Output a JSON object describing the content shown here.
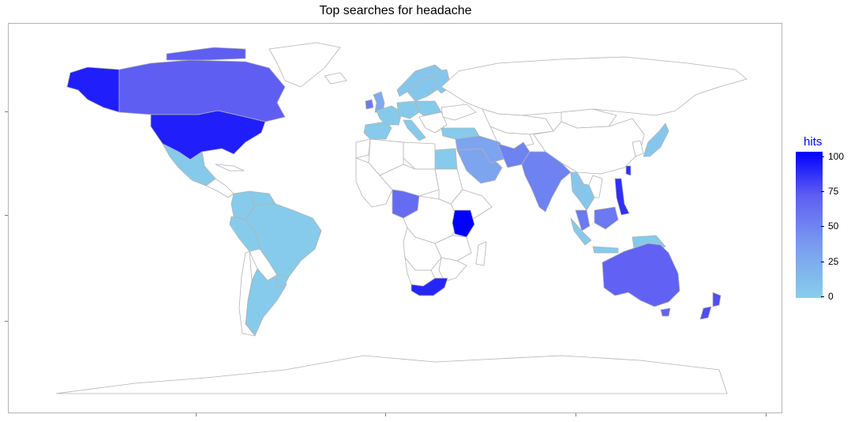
{
  "title": "Top searches for headache",
  "legend": {
    "title": "hits",
    "labels": [
      "100",
      "75",
      "50",
      "25",
      "0"
    ],
    "scale_low_color": "#87ceeb",
    "scale_high_color": "#0000ff"
  },
  "colors": {
    "land_unhighlighted": "#ffffff",
    "border": "#b3b3b3"
  },
  "chart_data": {
    "type": "choropleth map",
    "title": "Top searches for headache",
    "fill_variable": "hits",
    "fill_range": [
      0,
      100
    ],
    "regions": [
      {
        "name": "Kenya",
        "hits": 100
      },
      {
        "name": "United States",
        "hits": 90
      },
      {
        "name": "South Africa",
        "hits": 88
      },
      {
        "name": "Philippines",
        "hits": 85
      },
      {
        "name": "Canada",
        "hits": 70
      },
      {
        "name": "Australia",
        "hits": 68
      },
      {
        "name": "New Zealand",
        "hits": 75
      },
      {
        "name": "Nigeria",
        "hits": 62
      },
      {
        "name": "Malaysia",
        "hits": 55
      },
      {
        "name": "Ireland",
        "hits": 55
      },
      {
        "name": "India",
        "hits": 50
      },
      {
        "name": "Pakistan",
        "hits": 50
      },
      {
        "name": "Saudi Arabia",
        "hits": 30
      },
      {
        "name": "United Kingdom",
        "hits": 25
      },
      {
        "name": "Singapore",
        "hits": 25
      },
      {
        "name": "Mexico",
        "hits": 3
      },
      {
        "name": "Brazil",
        "hits": 2
      },
      {
        "name": "Colombia",
        "hits": 2
      },
      {
        "name": "Argentina",
        "hits": 2
      },
      {
        "name": "Spain",
        "hits": 2
      },
      {
        "name": "Germany",
        "hits": 3
      },
      {
        "name": "Turkey",
        "hits": 2
      },
      {
        "name": "Egypt",
        "hits": 2
      },
      {
        "name": "Japan",
        "hits": 5
      },
      {
        "name": "Indonesia",
        "hits": 3
      },
      {
        "name": "Thailand",
        "hits": 5
      },
      {
        "name": "Sweden",
        "hits": 5
      },
      {
        "name": "Italy",
        "hits": 2
      }
    ]
  }
}
